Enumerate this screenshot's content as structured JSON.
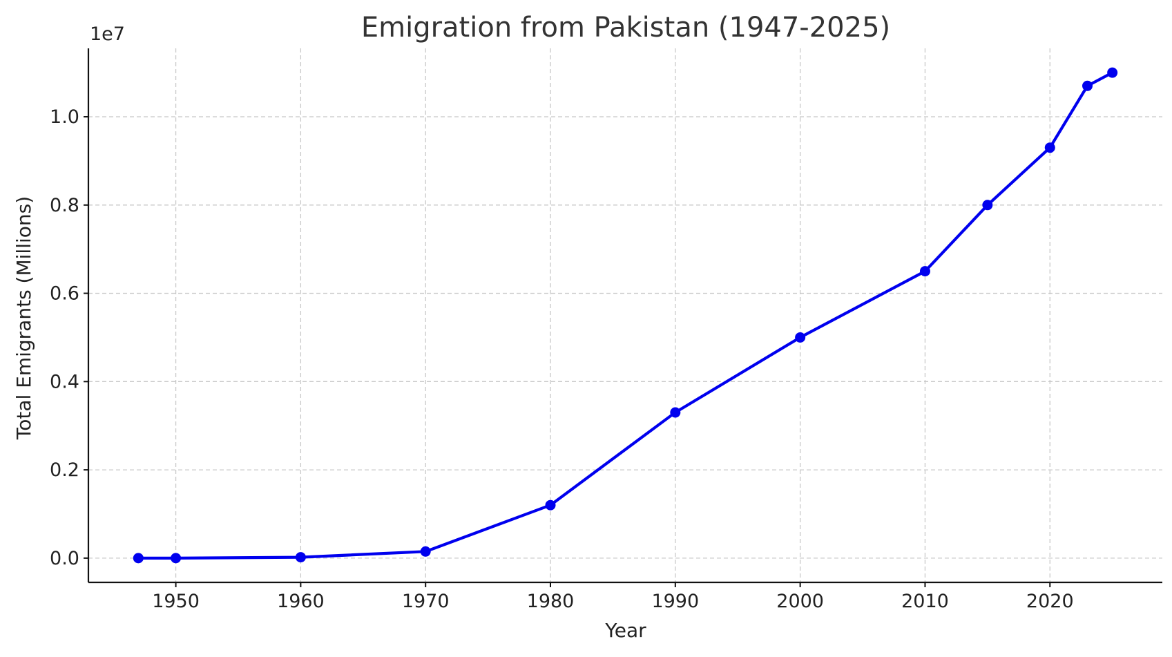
{
  "chart_data": {
    "type": "line",
    "title": "Emigration from Pakistan (1947-2025)",
    "xlabel": "Year",
    "ylabel": "Total Emigrants (Millions)",
    "y_offset_label": "1e7",
    "xlim": [
      1943,
      2029
    ],
    "ylim": [
      -550000,
      11550000
    ],
    "x_ticks": [
      1950,
      1960,
      1970,
      1980,
      1990,
      2000,
      2010,
      2020
    ],
    "x_tick_labels": [
      "1950",
      "1960",
      "1970",
      "1980",
      "1990",
      "2000",
      "2010",
      "2020"
    ],
    "y_ticks": [
      0,
      2000000,
      4000000,
      6000000,
      8000000,
      10000000
    ],
    "y_tick_labels": [
      "0.0",
      "0.2",
      "0.4",
      "0.6",
      "0.8",
      "1.0"
    ],
    "grid": true,
    "series": [
      {
        "color": "#0000ee",
        "x": [
          1947,
          1950,
          1960,
          1970,
          1980,
          1990,
          2000,
          2010,
          2015,
          2020,
          2023,
          2025
        ],
        "values": [
          0,
          0,
          20000,
          150000,
          1200000,
          3300000,
          5000000,
          6500000,
          8000000,
          9300000,
          10700000,
          11000000
        ]
      }
    ]
  }
}
